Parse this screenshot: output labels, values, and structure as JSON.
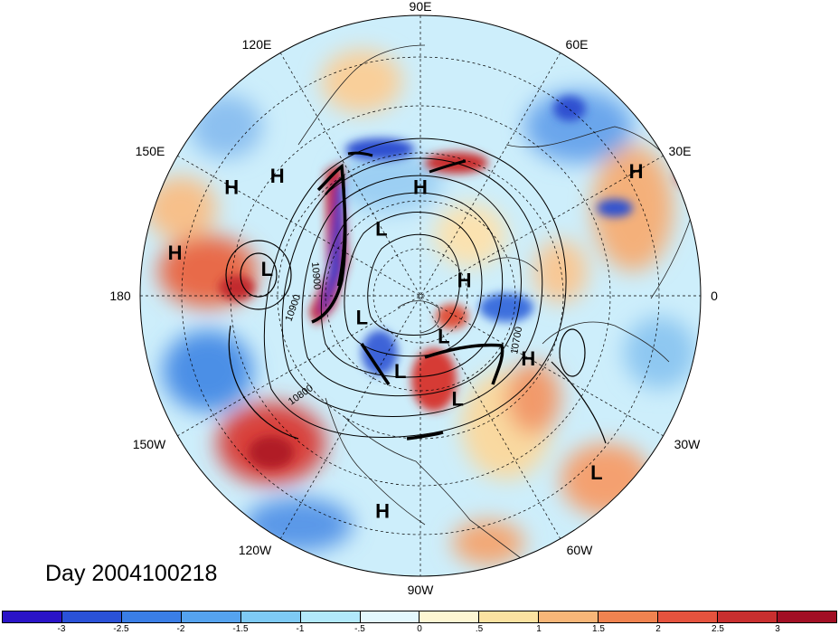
{
  "title": "Day 2004100218",
  "longitude_labels": {
    "deg90E": "90E",
    "deg60E": "60E",
    "deg30E": "30E",
    "deg0": "0",
    "deg30W": "30W",
    "deg60W": "60W",
    "deg90W": "90W",
    "deg120W": "120W",
    "deg150W": "150W",
    "deg180": "180",
    "deg150E": "150E",
    "deg120E": "120E"
  },
  "pressure_centers": [
    {
      "label": "H",
      "lon": 90,
      "lat": 55
    },
    {
      "label": "H",
      "lon": 30,
      "lat": 10
    },
    {
      "label": "H",
      "lon": 150,
      "lat": 20
    },
    {
      "label": "H",
      "lon": 140,
      "lat": 30
    },
    {
      "label": "L",
      "lon": 170,
      "lat": 40
    },
    {
      "label": "L",
      "lon": 120,
      "lat": 65
    },
    {
      "label": "H",
      "lon": 20,
      "lat": 75
    },
    {
      "label": "H",
      "lon": 170,
      "lat": 10
    },
    {
      "label": "L",
      "lon": 200,
      "lat": 70
    },
    {
      "label": "L",
      "lon": 300,
      "lat": 75
    },
    {
      "label": "L",
      "lon": 255,
      "lat": 65
    },
    {
      "label": "L",
      "lon": 290,
      "lat": 55
    },
    {
      "label": "H",
      "lon": 330,
      "lat": 50
    },
    {
      "label": "H",
      "lon": 260,
      "lat": 20
    },
    {
      "label": "L",
      "lon": 315,
      "lat": 10
    }
  ],
  "contour_labels": [
    "10900",
    "10900",
    "10800",
    "10700"
  ],
  "colorbar": {
    "colors": [
      "#2a14c8",
      "#2a52d8",
      "#3a7ee6",
      "#55a3ef",
      "#7ecaf5",
      "#b2e9fb",
      "#e3f7fd",
      "#fdf6d3",
      "#fbe2a1",
      "#f7b678",
      "#f08350",
      "#e5533e",
      "#c92f2f",
      "#a20f24"
    ],
    "tick_labels": [
      "-3",
      "-2.5",
      "-2",
      "-1.5",
      "-1",
      "-.5",
      "0",
      ".5",
      "1",
      "1.5",
      "2",
      "2.5",
      "3"
    ]
  }
}
